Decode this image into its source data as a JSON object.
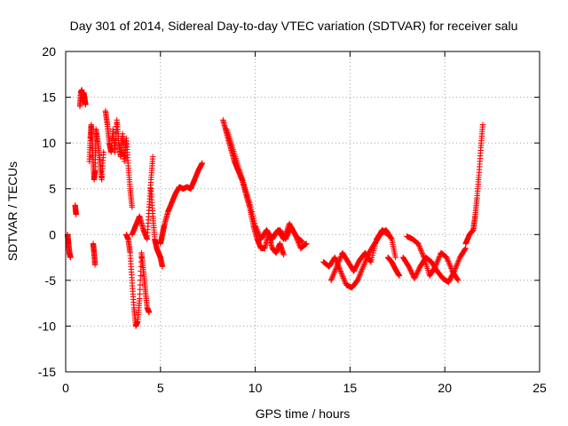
{
  "chart_data": {
    "type": "scatter",
    "title": "Day 301 of 2014, Sidereal Day-to-day VTEC variation (SDTVAR) for receiver salu",
    "xlabel": "GPS time / hours",
    "ylabel": "SDTVAR / TECUs",
    "xlim": [
      0,
      25
    ],
    "ylim": [
      -15,
      20
    ],
    "x_ticks": [
      0,
      5,
      10,
      15,
      20,
      25
    ],
    "x_tick_labels": [
      "0",
      "5",
      "10",
      "15",
      "20",
      "25"
    ],
    "y_ticks": [
      -15,
      -10,
      -5,
      0,
      5,
      10,
      15,
      20
    ],
    "y_tick_labels": [
      "-15",
      "-10",
      "-5",
      "0",
      "5",
      "10",
      "15",
      "20"
    ],
    "grid": true,
    "marker": "plus",
    "series": [
      {
        "name": "SDTVAR",
        "color": "#ff0000",
        "segments": [
          {
            "x": [
              0.1,
              0.15,
              0.2,
              0.25
            ],
            "y": [
              0,
              -1,
              -2,
              -2.5
            ]
          },
          {
            "x": [
              0.5,
              0.55
            ],
            "y": [
              3.2,
              2.2
            ]
          },
          {
            "x": [
              0.75,
              0.8,
              0.85,
              0.9,
              0.95,
              1.0,
              1.05
            ],
            "y": [
              14,
              15.5,
              15.8,
              14.5,
              15.5,
              14.8,
              14.2
            ]
          },
          {
            "x": [
              1.25,
              1.3,
              1.35,
              1.4,
              1.45,
              1.5,
              1.55,
              1.6
            ],
            "y": [
              8,
              10.5,
              12,
              10,
              8,
              6,
              7,
              11
            ]
          },
          {
            "x": [
              1.45,
              1.5,
              1.55
            ],
            "y": [
              -1,
              -2,
              -3.3
            ]
          },
          {
            "x": [
              1.6,
              1.7,
              1.8,
              1.9,
              2.0
            ],
            "y": [
              11.5,
              10,
              8,
              6,
              9
            ]
          },
          {
            "x": [
              2.1,
              2.2,
              2.3,
              2.4,
              2.5,
              2.6,
              2.7,
              2.8,
              2.9,
              3.0,
              3.1,
              3.2,
              3.3,
              3.4,
              3.5
            ],
            "y": [
              13.5,
              12,
              10,
              9,
              11.5,
              9,
              12.5,
              10,
              8.5,
              11,
              8,
              10.5,
              7.5,
              5,
              3
            ]
          },
          {
            "x": [
              3.2,
              3.3,
              3.4,
              3.5,
              3.6,
              3.7,
              3.8,
              3.9,
              4.0,
              4.1,
              4.2,
              4.3,
              4.4
            ],
            "y": [
              0,
              -0.5,
              -2,
              -5,
              -8,
              -10,
              -9.5,
              -7,
              -2,
              -4,
              -6,
              -8,
              -8.5
            ]
          },
          {
            "x": [
              3.5,
              3.7,
              3.9,
              4.1,
              4.3,
              4.4,
              4.5,
              4.6
            ],
            "y": [
              0,
              1,
              2,
              0.5,
              -0.5,
              3,
              6,
              8.5
            ]
          },
          {
            "x": [
              4.5,
              4.6,
              4.7,
              4.8,
              4.9,
              5.0,
              5.1
            ],
            "y": [
              5,
              2,
              -0.5,
              -1.5,
              -2,
              -2.5,
              -3.5
            ]
          },
          {
            "x": [
              5.0,
              5.1,
              5.2,
              5.4,
              5.6,
              5.8,
              6.0,
              6.2,
              6.4,
              6.6,
              6.8,
              7.0,
              7.2
            ],
            "y": [
              -1,
              0,
              1,
              2.5,
              3.5,
              4.5,
              5.2,
              5,
              5.2,
              5,
              6,
              7,
              7.8
            ]
          },
          {
            "x": [
              8.3,
              8.5,
              8.7,
              8.9,
              9.1,
              9.3,
              9.5,
              9.7,
              9.9,
              10.1,
              10.3,
              10.5,
              10.7,
              10.9,
              11.1,
              11.3,
              11.5
            ],
            "y": [
              12.5,
              11,
              9.5,
              8,
              7,
              6,
              4.5,
              3,
              1,
              -0.5,
              -1.5,
              -1.5,
              0,
              -1.5,
              -2,
              -1,
              -2.2
            ]
          },
          {
            "x": [
              8.5,
              8.8,
              9.1,
              9.4,
              9.7,
              10.0,
              10.3,
              10.6,
              10.9,
              11.2,
              11.5,
              11.8,
              12.1,
              12.4,
              12.7
            ],
            "y": [
              11.5,
              9.5,
              7.5,
              5.5,
              3.5,
              1,
              -0.5,
              0.5,
              -0.5,
              0.5,
              -0.5,
              1.2,
              0,
              -1.5,
              -1
            ]
          },
          {
            "x": [
              11.0,
              11.3,
              11.6,
              11.9,
              12.2,
              12.5
            ],
            "y": [
              0,
              0.5,
              -0.5,
              0.8,
              -0.3,
              -0.8
            ]
          },
          {
            "x": [
              13.6,
              13.9,
              14.2,
              14.5,
              14.8,
              15.1,
              15.4,
              15.7,
              16.0,
              16.3,
              16.6,
              16.9,
              17.2,
              17.4
            ],
            "y": [
              -3,
              -3.5,
              -2.5,
              -4,
              -5.5,
              -5.8,
              -5,
              -3.5,
              -2,
              -1,
              0,
              0.5,
              -0.5,
              -2.5
            ]
          },
          {
            "x": [
              14.0,
              14.3,
              14.6,
              14.9,
              15.2,
              15.5,
              15.8,
              16.1,
              16.4,
              16.7,
              17.0
            ],
            "y": [
              -5,
              -3.5,
              -2,
              -3,
              -4,
              -2.8,
              -2,
              -3,
              -0.5,
              0.5,
              0
            ]
          },
          {
            "x": [
              17.0,
              17.2,
              17.4,
              17.6
            ],
            "y": [
              -2.5,
              -3,
              -3.8,
              -4.5
            ]
          },
          {
            "x": [
              17.8,
              18.1,
              18.4,
              18.7,
              19.0,
              19.3,
              19.6,
              19.9,
              20.2,
              20.5,
              20.8,
              21.1
            ],
            "y": [
              -2.5,
              -3.5,
              -4.8,
              -3.5,
              -2.5,
              -3,
              -4,
              -4.8,
              -5.2,
              -4,
              -2.5,
              -1.5
            ]
          },
          {
            "x": [
              18.0,
              18.3,
              18.6,
              18.9,
              19.2,
              19.5,
              19.8,
              20.1,
              20.4,
              20.7
            ],
            "y": [
              -0.2,
              -0.5,
              -1,
              -2.5,
              -4.5,
              -3.5,
              -2,
              -2.5,
              -4,
              -5
            ]
          },
          {
            "x": [
              21.1,
              21.3,
              21.5,
              21.6,
              21.7,
              21.8,
              21.9,
              22.0
            ],
            "y": [
              -1,
              0,
              0.5,
              2,
              4,
              6.5,
              9.5,
              12
            ]
          }
        ]
      }
    ]
  }
}
